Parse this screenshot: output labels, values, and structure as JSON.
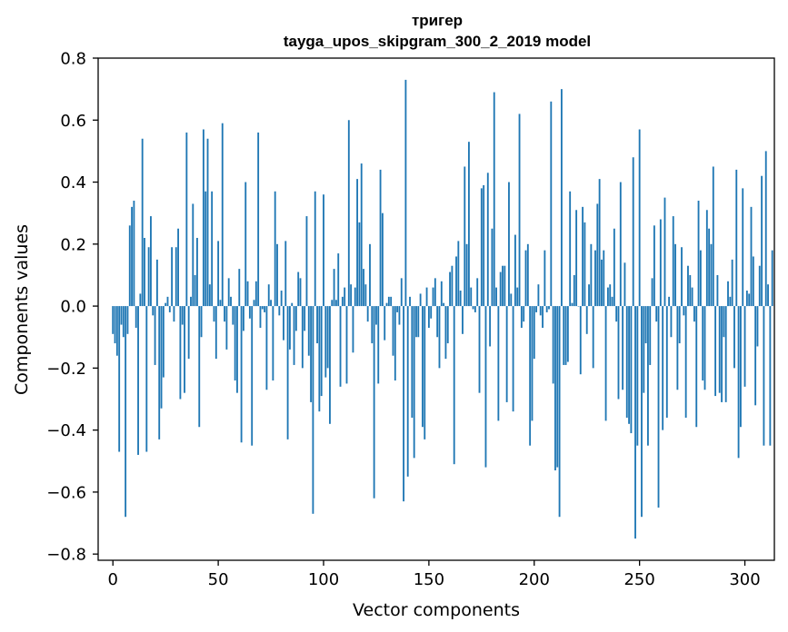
{
  "chart_data": {
    "type": "bar",
    "title_line1": "тригер",
    "title_line2": "tayga_upos_skipgram_300_2_2019 model",
    "xlabel": "Vector components",
    "ylabel": "Components values",
    "xlim": [
      -7,
      314
    ],
    "ylim": [
      -0.82,
      0.8
    ],
    "xticks": [
      0,
      50,
      100,
      150,
      200,
      250,
      300
    ],
    "xtick_labels": [
      "0",
      "50",
      "100",
      "150",
      "200",
      "250",
      "300"
    ],
    "yticks": [
      -0.8,
      -0.6,
      -0.4,
      -0.2,
      0.0,
      0.2,
      0.4,
      0.6,
      0.8
    ],
    "ytick_labels": [
      "−0.8",
      "−0.6",
      "−0.4",
      "−0.2",
      "0.0",
      "0.2",
      "0.4",
      "0.6",
      "0.8"
    ],
    "bar_color": "#1f77b4",
    "grid": false,
    "values": [
      -0.09,
      -0.12,
      -0.16,
      -0.47,
      -0.06,
      -0.1,
      -0.68,
      -0.09,
      0.26,
      0.32,
      0.34,
      -0.07,
      -0.48,
      0.04,
      0.54,
      0.22,
      -0.47,
      0.19,
      0.29,
      -0.03,
      -0.19,
      0.15,
      -0.43,
      -0.33,
      -0.23,
      0.01,
      0.03,
      -0.02,
      0.19,
      -0.05,
      0.19,
      0.25,
      -0.3,
      -0.06,
      -0.28,
      0.56,
      -0.17,
      0.03,
      0.33,
      0.1,
      0.22,
      -0.39,
      -0.1,
      0.57,
      0.37,
      0.54,
      0.07,
      0.37,
      -0.05,
      -0.17,
      0.21,
      0.02,
      0.59,
      -0.05,
      -0.14,
      0.09,
      0.03,
      -0.06,
      -0.24,
      -0.28,
      0.12,
      -0.44,
      -0.08,
      0.4,
      0.08,
      -0.04,
      -0.45,
      0.02,
      0.08,
      0.56,
      -0.07,
      -0.01,
      -0.02,
      -0.27,
      0.07,
      0.02,
      -0.24,
      0.37,
      0.2,
      -0.03,
      0.05,
      -0.11,
      0.21,
      -0.43,
      -0.14,
      0.01,
      -0.19,
      -0.08,
      0.11,
      0.09,
      -0.2,
      -0.08,
      0.29,
      -0.16,
      -0.31,
      -0.67,
      0.37,
      -0.12,
      -0.34,
      -0.29,
      0.36,
      -0.23,
      -0.2,
      -0.38,
      0.02,
      0.12,
      0.02,
      0.17,
      -0.26,
      0.03,
      0.06,
      -0.25,
      0.6,
      0.07,
      -0.15,
      0.06,
      0.41,
      0.27,
      0.46,
      0.12,
      0.07,
      -0.05,
      0.2,
      -0.12,
      -0.62,
      -0.06,
      -0.25,
      0.44,
      0.3,
      -0.11,
      0.01,
      0.03,
      0.03,
      -0.16,
      -0.24,
      -0.02,
      -0.06,
      0.09,
      -0.63,
      0.73,
      -0.55,
      0.03,
      -0.36,
      -0.49,
      -0.1,
      -0.1,
      0.04,
      -0.39,
      -0.43,
      0.06,
      -0.07,
      -0.04,
      0.06,
      0.09,
      -0.1,
      -0.2,
      0.08,
      0.01,
      -0.17,
      -0.12,
      0.11,
      0.13,
      -0.51,
      0.16,
      0.21,
      0.05,
      -0.09,
      0.45,
      0.2,
      0.53,
      0.06,
      -0.01,
      -0.02,
      0.09,
      -0.28,
      0.38,
      0.39,
      -0.52,
      0.43,
      -0.13,
      0.25,
      0.69,
      0.06,
      -0.37,
      0.11,
      0.13,
      0.13,
      -0.31,
      0.4,
      0.04,
      -0.34,
      0.23,
      0.06,
      0.62,
      -0.07,
      -0.05,
      0.18,
      0.2,
      -0.45,
      -0.37,
      -0.17,
      -0.02,
      0.07,
      -0.03,
      -0.07,
      0.18,
      -0.02,
      -0.01,
      0.66,
      -0.25,
      -0.53,
      -0.52,
      -0.68,
      0.7,
      -0.19,
      -0.19,
      -0.18,
      0.37,
      0.01,
      0.1,
      0.31,
      0.0,
      -0.22,
      0.32,
      0.27,
      -0.09,
      0.07,
      0.2,
      -0.2,
      0.18,
      0.33,
      0.41,
      0.15,
      0.18,
      -0.37,
      0.06,
      0.07,
      0.03,
      0.25,
      -0.05,
      -0.3,
      0.4,
      -0.27,
      0.14,
      -0.36,
      -0.38,
      -0.41,
      0.48,
      -0.75,
      -0.45,
      0.57,
      -0.68,
      -0.28,
      -0.12,
      -0.45,
      -0.19,
      0.09,
      0.26,
      -0.05,
      -0.65,
      0.28,
      -0.4,
      0.35,
      -0.36,
      0.03,
      -0.1,
      0.29,
      0.2,
      -0.27,
      -0.12,
      0.19,
      -0.03,
      -0.36,
      0.13,
      0.1,
      0.06,
      -0.05,
      -0.39,
      0.34,
      0.18,
      -0.24,
      -0.27,
      0.31,
      0.25,
      0.2,
      0.45,
      -0.29,
      0.1,
      -0.28,
      -0.31,
      -0.1,
      -0.31,
      0.08,
      0.03,
      0.15,
      -0.2,
      0.44,
      -0.49,
      -0.39,
      0.38,
      -0.26,
      0.05,
      0.04,
      0.32,
      0.16,
      -0.32,
      -0.13,
      0.13,
      0.42,
      -0.45,
      0.5,
      0.07,
      -0.45,
      0.18
    ]
  }
}
